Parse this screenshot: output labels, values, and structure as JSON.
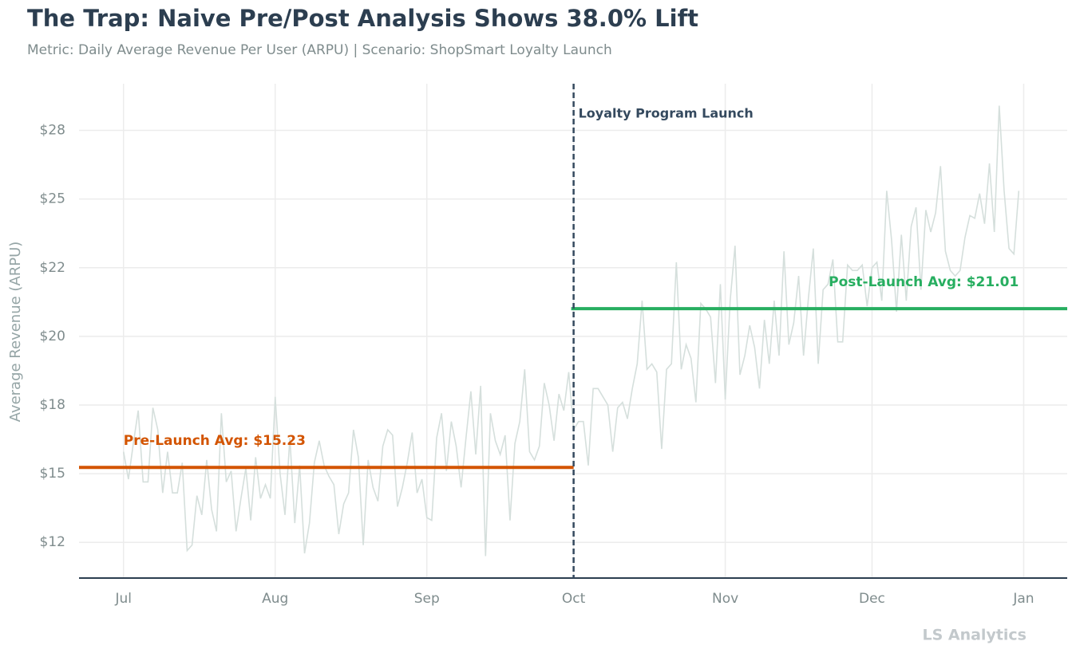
{
  "chart_data": {
    "type": "line",
    "title": "The Trap: Naive Pre/Post Analysis Shows 38.0% Lift",
    "subtitle": "Metric: Daily Average Revenue Per User (ARPU) | Scenario: ShopSmart Loyalty Launch",
    "y_label": "Average Revenue (ARPU)",
    "watermark": "LS Analytics",
    "grid": true,
    "x": [
      0,
      1,
      2,
      3,
      4,
      5,
      6,
      7,
      8,
      9,
      10,
      11,
      12,
      13,
      14,
      15,
      16,
      17,
      18,
      19,
      20,
      21,
      22,
      23,
      24,
      25,
      26,
      27,
      28,
      29,
      30,
      31,
      32,
      33,
      34,
      35,
      36,
      37,
      38,
      39,
      40,
      41,
      42,
      43,
      44,
      45,
      46,
      47,
      48,
      49,
      50,
      51,
      52,
      53,
      54,
      55,
      56,
      57,
      58,
      59,
      60,
      61,
      62,
      63,
      64,
      65,
      66,
      67,
      68,
      69,
      70,
      71,
      72,
      73,
      74,
      75,
      76,
      77,
      78,
      79,
      80,
      81,
      82,
      83,
      84,
      85,
      86,
      87,
      88,
      89,
      90,
      91,
      92,
      93,
      94,
      95,
      96,
      97,
      98,
      99,
      100,
      101,
      102,
      103,
      104,
      105,
      106,
      107,
      108,
      109,
      110,
      111,
      112,
      113,
      114,
      115,
      116,
      117,
      118,
      119,
      120,
      121,
      122,
      123,
      124,
      125,
      126,
      127,
      128,
      129,
      130,
      131,
      132,
      133,
      134,
      135,
      136,
      137,
      138,
      139,
      140,
      141,
      142,
      143,
      144,
      145,
      146,
      147,
      148,
      149,
      150,
      151,
      152,
      153,
      154,
      155,
      156,
      157,
      158,
      159,
      160,
      161,
      162,
      163,
      164,
      165,
      166,
      167,
      168,
      169,
      170,
      171,
      172,
      173,
      174,
      175,
      176,
      177,
      178,
      179,
      180,
      181,
      182,
      183
    ],
    "series": [
      {
        "color": "#d5dfdc",
        "values": [
          15.8,
          14.8,
          16.1,
          17.3,
          14.7,
          14.7,
          17.4,
          16.6,
          14.3,
          15.8,
          14.3,
          14.3,
          15.4,
          12.2,
          12.4,
          14.2,
          13.5,
          15.5,
          13.7,
          12.9,
          17.2,
          14.7,
          15.1,
          12.9,
          14.1,
          15.2,
          13.3,
          15.6,
          14.1,
          14.6,
          14.1,
          17.8,
          15.0,
          13.5,
          16.3,
          13.2,
          15.3,
          12.1,
          13.2,
          15.4,
          16.2,
          15.3,
          14.9,
          14.6,
          12.8,
          13.9,
          14.3,
          16.6,
          15.6,
          12.4,
          15.5,
          14.5,
          14.0,
          16.0,
          16.6,
          16.4,
          13.8,
          14.5,
          15.4,
          16.5,
          14.3,
          14.8,
          13.4,
          13.3,
          16.3,
          17.2,
          15.1,
          16.9,
          16.0,
          14.5,
          16.3,
          18.0,
          15.7,
          18.2,
          12.0,
          17.2,
          16.2,
          15.7,
          16.4,
          13.3,
          16.1,
          16.9,
          18.8,
          15.8,
          15.5,
          16.0,
          18.3,
          17.5,
          16.2,
          17.9,
          17.3,
          18.7,
          16.6,
          16.9,
          16.9,
          15.3,
          18.1,
          18.1,
          17.8,
          17.5,
          15.8,
          17.4,
          17.6,
          17.0,
          18.1,
          19.0,
          21.3,
          18.8,
          19.0,
          18.7,
          15.9,
          18.8,
          19.0,
          22.7,
          18.8,
          19.7,
          19.2,
          17.6,
          21.2,
          21.0,
          20.7,
          18.3,
          21.9,
          17.7,
          21.3,
          23.3,
          18.6,
          19.3,
          20.4,
          19.6,
          18.1,
          20.6,
          19.0,
          21.3,
          19.3,
          23.1,
          19.7,
          20.5,
          22.2,
          19.3,
          21.4,
          23.2,
          19.0,
          21.7,
          21.9,
          22.8,
          19.8,
          19.8,
          22.6,
          22.4,
          22.4,
          22.6,
          21.1,
          22.5,
          22.7,
          21.3,
          25.3,
          23.5,
          20.9,
          23.7,
          21.3,
          24.0,
          24.7,
          21.7,
          24.6,
          23.8,
          24.5,
          26.2,
          23.1,
          22.4,
          22.2,
          22.4,
          23.6,
          24.4,
          24.3,
          25.2,
          24.1,
          26.3,
          23.8,
          28.4,
          25.3,
          23.2,
          23.0,
          25.3
        ]
      }
    ],
    "xlim": [
      -9.1,
      192.9
    ],
    "xticks": [
      {
        "value": 0,
        "label": "Jul"
      },
      {
        "value": 31,
        "label": "Aug"
      },
      {
        "value": 62,
        "label": "Sep"
      },
      {
        "value": 92,
        "label": "Oct"
      },
      {
        "value": 123,
        "label": "Nov"
      },
      {
        "value": 153,
        "label": "Dec"
      },
      {
        "value": 184,
        "label": "Jan"
      }
    ],
    "ylim": [
      11.2,
      29.2
    ],
    "yticks": [
      {
        "value": 12.5,
        "label": "$12"
      },
      {
        "value": 15,
        "label": "$15"
      },
      {
        "value": 17.5,
        "label": "$18"
      },
      {
        "value": 20,
        "label": "$20"
      },
      {
        "value": 22.5,
        "label": "$22"
      },
      {
        "value": 25,
        "label": "$25"
      },
      {
        "value": 27.5,
        "label": "$28"
      }
    ],
    "launch": {
      "x": 92,
      "label": "Loyalty Program Launch",
      "color": "#34495e"
    },
    "averages": [
      {
        "value": 15.23,
        "label": "Pre-Launch Avg: $15.23",
        "color": "#d35400",
        "side": "before"
      },
      {
        "value": 21.01,
        "label": "Post-Launch Avg: $21.01",
        "color": "#27ae60",
        "side": "after"
      }
    ]
  }
}
